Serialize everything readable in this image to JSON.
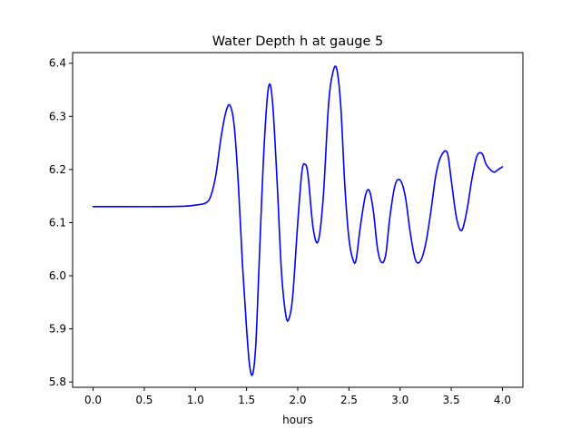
{
  "chart_data": {
    "type": "line",
    "title": "Water Depth h at gauge 5",
    "xlabel": "hours",
    "ylabel": "",
    "xlim": [
      -0.2,
      4.2
    ],
    "ylim": [
      5.79,
      6.42
    ],
    "xticks": [
      0.0,
      0.5,
      1.0,
      1.5,
      2.0,
      2.5,
      3.0,
      3.5,
      4.0
    ],
    "xtick_labels": [
      "0.0",
      "0.5",
      "1.0",
      "1.5",
      "2.0",
      "2.5",
      "3.0",
      "3.5",
      "4.0"
    ],
    "yticks": [
      5.8,
      5.9,
      6.0,
      6.1,
      6.2,
      6.3,
      6.4
    ],
    "ytick_labels": [
      "5.8",
      "5.9",
      "6.0",
      "6.1",
      "6.2",
      "6.3",
      "6.4"
    ],
    "grid": false,
    "legend": "none",
    "line_color": "#0000ff",
    "series": [
      {
        "x": [
          0.0,
          0.3,
          0.6,
          0.9,
          1.0,
          1.1,
          1.15,
          1.2,
          1.25,
          1.3,
          1.34,
          1.38,
          1.42,
          1.46,
          1.5,
          1.53,
          1.56,
          1.59,
          1.62,
          1.66,
          1.7,
          1.73,
          1.76,
          1.8,
          1.84,
          1.88,
          1.91,
          1.95,
          2.0,
          2.04,
          2.07,
          2.1,
          2.15,
          2.2,
          2.25,
          2.3,
          2.34,
          2.38,
          2.42,
          2.46,
          2.5,
          2.54,
          2.57,
          2.61,
          2.66,
          2.7,
          2.74,
          2.78,
          2.82,
          2.86,
          2.9,
          2.95,
          3.0,
          3.05,
          3.1,
          3.15,
          3.2,
          3.25,
          3.3,
          3.35,
          3.4,
          3.46,
          3.5,
          3.55,
          3.6,
          3.65,
          3.7,
          3.75,
          3.8,
          3.84,
          3.88,
          3.92,
          3.96,
          4.0
        ],
        "y": [
          6.13,
          6.13,
          6.13,
          6.131,
          6.133,
          6.137,
          6.15,
          6.19,
          6.26,
          6.31,
          6.32,
          6.28,
          6.17,
          6.02,
          5.9,
          5.83,
          5.815,
          5.87,
          6.01,
          6.2,
          6.33,
          6.36,
          6.31,
          6.17,
          6.01,
          5.93,
          5.917,
          5.96,
          6.1,
          6.195,
          6.21,
          6.19,
          6.09,
          6.065,
          6.15,
          6.32,
          6.38,
          6.39,
          6.32,
          6.17,
          6.07,
          6.03,
          6.03,
          6.09,
          6.15,
          6.16,
          6.12,
          6.05,
          6.025,
          6.04,
          6.11,
          6.17,
          6.18,
          6.15,
          6.08,
          6.03,
          6.028,
          6.06,
          6.12,
          6.19,
          6.225,
          6.232,
          6.18,
          6.11,
          6.085,
          6.12,
          6.18,
          6.225,
          6.23,
          6.21,
          6.2,
          6.195,
          6.2,
          6.205
        ]
      }
    ]
  }
}
